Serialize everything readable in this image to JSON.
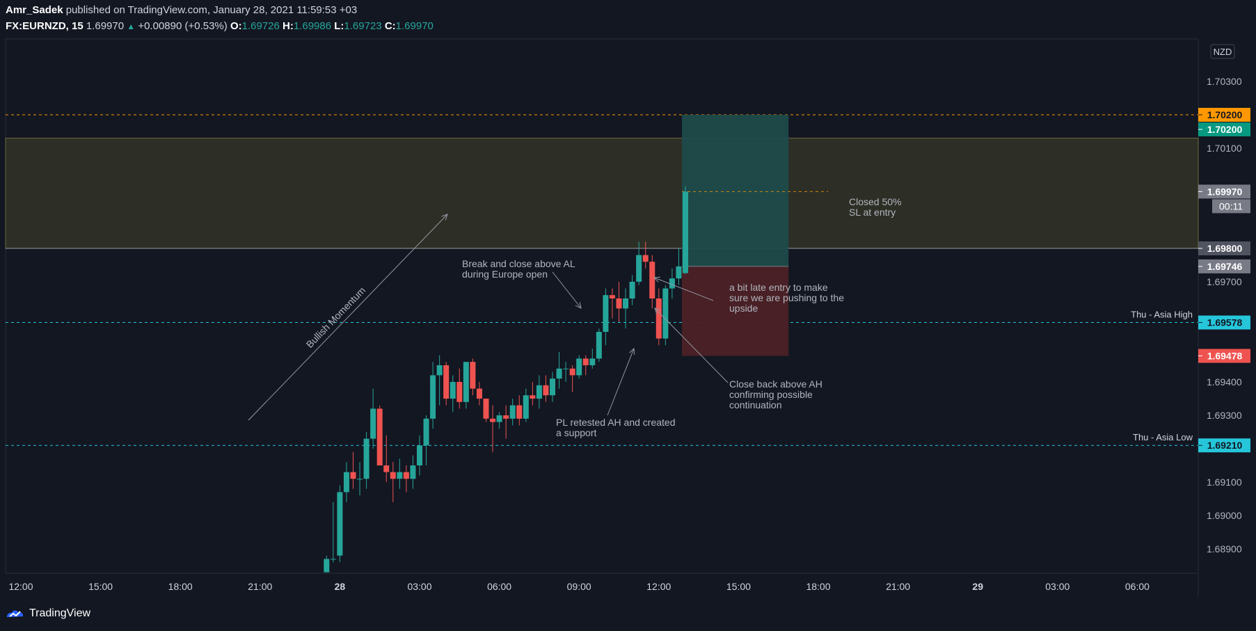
{
  "header": {
    "author": "Amr_Sadek",
    "published_text": "published on TradingView.com, January 28, 2021 11:59:53 +03",
    "symbol": "FX:EURNZD, 15",
    "last": "1.69970",
    "change": "+0.00890 (+0.53%)",
    "o_label": "O:",
    "o": "1.69726",
    "h_label": "H:",
    "h": "1.69986",
    "l_label": "L:",
    "l": "1.69723",
    "c_label": "C:",
    "c": "1.69970"
  },
  "footer": {
    "brand": "TradingView"
  },
  "colors": {
    "background": "#131722",
    "up": "#26a69a",
    "down": "#ef5350",
    "zone": "#2d2f26",
    "tp": "#1f4b4b",
    "sl": "#4b2126",
    "asia": "#26c6da",
    "target_line": "#ff9800"
  },
  "chart_data": {
    "type": "candlestick",
    "symbol": "FX:EURNZD",
    "interval": "15",
    "currency_badge": "NZD",
    "ylim": [
      1.6885,
      1.7046
    ],
    "y_ticks": [
      "1.70300",
      "1.70100",
      "1.69700",
      "1.69400",
      "1.69300",
      "1.69100",
      "1.69000",
      "1.68900"
    ],
    "x_ticks": [
      {
        "label": "12:00",
        "day": "27",
        "hour": 12,
        "bold": false
      },
      {
        "label": "15:00",
        "day": "27",
        "hour": 15,
        "bold": false
      },
      {
        "label": "18:00",
        "day": "27",
        "hour": 18,
        "bold": false
      },
      {
        "label": "21:00",
        "day": "27",
        "hour": 21,
        "bold": false
      },
      {
        "label": "28",
        "day": "28",
        "hour": 0,
        "bold": true
      },
      {
        "label": "03:00",
        "day": "28",
        "hour": 3,
        "bold": false
      },
      {
        "label": "06:00",
        "day": "28",
        "hour": 6,
        "bold": false
      },
      {
        "label": "09:00",
        "day": "28",
        "hour": 9,
        "bold": false
      },
      {
        "label": "12:00",
        "day": "28",
        "hour": 12,
        "bold": false
      },
      {
        "label": "15:00",
        "day": "28",
        "hour": 15,
        "bold": false
      },
      {
        "label": "18:00",
        "day": "28",
        "hour": 18,
        "bold": false
      },
      {
        "label": "21:00",
        "day": "28",
        "hour": 21,
        "bold": false
      },
      {
        "label": "29",
        "day": "29",
        "hour": 0,
        "bold": true
      },
      {
        "label": "03:00",
        "day": "29",
        "hour": 3,
        "bold": false
      },
      {
        "label": "06:00",
        "day": "29",
        "hour": 6,
        "bold": false
      }
    ],
    "candles": [
      {
        "t": "27 23:30",
        "o": 1.6883,
        "h": 1.6888,
        "l": 1.6883,
        "c": 1.6887
      },
      {
        "t": "27 23:45",
        "o": 1.6887,
        "h": 1.6904,
        "l": 1.6886,
        "c": 1.6887
      },
      {
        "t": "28 00:00",
        "o": 1.6888,
        "h": 1.6909,
        "l": 1.6886,
        "c": 1.6907
      },
      {
        "t": "28 00:15",
        "o": 1.6907,
        "h": 1.6916,
        "l": 1.6904,
        "c": 1.6913
      },
      {
        "t": "28 00:30",
        "o": 1.6913,
        "h": 1.6919,
        "l": 1.6908,
        "c": 1.6911
      },
      {
        "t": "28 00:45",
        "o": 1.6911,
        "h": 1.6916,
        "l": 1.6906,
        "c": 1.6911
      },
      {
        "t": "28 01:00",
        "o": 1.6911,
        "h": 1.6925,
        "l": 1.6908,
        "c": 1.6923
      },
      {
        "t": "28 01:15",
        "o": 1.6923,
        "h": 1.6938,
        "l": 1.692,
        "c": 1.6932
      },
      {
        "t": "28 01:30",
        "o": 1.6932,
        "h": 1.6933,
        "l": 1.6915,
        "c": 1.6915
      },
      {
        "t": "28 01:45",
        "o": 1.6915,
        "h": 1.6924,
        "l": 1.691,
        "c": 1.6913
      },
      {
        "t": "28 02:00",
        "o": 1.6913,
        "h": 1.6916,
        "l": 1.6904,
        "c": 1.6911
      },
      {
        "t": "28 02:15",
        "o": 1.6911,
        "h": 1.6917,
        "l": 1.6908,
        "c": 1.6913
      },
      {
        "t": "28 02:30",
        "o": 1.6913,
        "h": 1.6915,
        "l": 1.6907,
        "c": 1.6911
      },
      {
        "t": "28 02:45",
        "o": 1.6911,
        "h": 1.6918,
        "l": 1.6908,
        "c": 1.6915
      },
      {
        "t": "28 03:00",
        "o": 1.6915,
        "h": 1.6924,
        "l": 1.6912,
        "c": 1.6921
      },
      {
        "t": "28 03:15",
        "o": 1.6921,
        "h": 1.693,
        "l": 1.6915,
        "c": 1.6929
      },
      {
        "t": "28 03:30",
        "o": 1.6929,
        "h": 1.6946,
        "l": 1.6926,
        "c": 1.6942
      },
      {
        "t": "28 03:45",
        "o": 1.6942,
        "h": 1.6948,
        "l": 1.6933,
        "c": 1.6945
      },
      {
        "t": "28 04:00",
        "o": 1.6945,
        "h": 1.6946,
        "l": 1.6933,
        "c": 1.6935
      },
      {
        "t": "28 04:15",
        "o": 1.6935,
        "h": 1.6942,
        "l": 1.6931,
        "c": 1.694
      },
      {
        "t": "28 04:30",
        "o": 1.694,
        "h": 1.6944,
        "l": 1.6932,
        "c": 1.6934
      },
      {
        "t": "28 04:45",
        "o": 1.6934,
        "h": 1.6946,
        "l": 1.6932,
        "c": 1.6946
      },
      {
        "t": "28 05:00",
        "o": 1.6946,
        "h": 1.6947,
        "l": 1.6936,
        "c": 1.6938
      },
      {
        "t": "28 05:15",
        "o": 1.6938,
        "h": 1.694,
        "l": 1.6933,
        "c": 1.6935
      },
      {
        "t": "28 05:30",
        "o": 1.6935,
        "h": 1.6935,
        "l": 1.6928,
        "c": 1.6929
      },
      {
        "t": "28 05:45",
        "o": 1.6929,
        "h": 1.6933,
        "l": 1.6919,
        "c": 1.6928
      },
      {
        "t": "28 06:00",
        "o": 1.6928,
        "h": 1.6931,
        "l": 1.6926,
        "c": 1.693
      },
      {
        "t": "28 06:15",
        "o": 1.693,
        "h": 1.6933,
        "l": 1.6923,
        "c": 1.6929
      },
      {
        "t": "28 06:30",
        "o": 1.6929,
        "h": 1.6935,
        "l": 1.6927,
        "c": 1.6933
      },
      {
        "t": "28 06:45",
        "o": 1.6933,
        "h": 1.6936,
        "l": 1.6927,
        "c": 1.6929
      },
      {
        "t": "28 07:00",
        "o": 1.6929,
        "h": 1.6938,
        "l": 1.6928,
        "c": 1.6936
      },
      {
        "t": "28 07:15",
        "o": 1.6936,
        "h": 1.694,
        "l": 1.6933,
        "c": 1.6935
      },
      {
        "t": "28 07:30",
        "o": 1.6935,
        "h": 1.6942,
        "l": 1.6932,
        "c": 1.6939
      },
      {
        "t": "28 07:45",
        "o": 1.6939,
        "h": 1.6942,
        "l": 1.6934,
        "c": 1.6936
      },
      {
        "t": "28 08:00",
        "o": 1.6936,
        "h": 1.6943,
        "l": 1.6934,
        "c": 1.6941
      },
      {
        "t": "28 08:15",
        "o": 1.6941,
        "h": 1.6949,
        "l": 1.6938,
        "c": 1.6944
      },
      {
        "t": "28 08:30",
        "o": 1.6944,
        "h": 1.6946,
        "l": 1.694,
        "c": 1.6944
      },
      {
        "t": "28 08:45",
        "o": 1.6944,
        "h": 1.6945,
        "l": 1.6937,
        "c": 1.6942
      },
      {
        "t": "28 09:00",
        "o": 1.6942,
        "h": 1.6948,
        "l": 1.6941,
        "c": 1.6947
      },
      {
        "t": "28 09:15",
        "o": 1.6947,
        "h": 1.6948,
        "l": 1.6942,
        "c": 1.6945
      },
      {
        "t": "28 09:30",
        "o": 1.6945,
        "h": 1.695,
        "l": 1.6944,
        "c": 1.6947
      },
      {
        "t": "28 09:45",
        "o": 1.6947,
        "h": 1.6956,
        "l": 1.6946,
        "c": 1.6955
      },
      {
        "t": "28 10:00",
        "o": 1.6955,
        "h": 1.6968,
        "l": 1.6951,
        "c": 1.6966
      },
      {
        "t": "28 10:15",
        "o": 1.6966,
        "h": 1.6968,
        "l": 1.6959,
        "c": 1.6965
      },
      {
        "t": "28 10:30",
        "o": 1.6965,
        "h": 1.697,
        "l": 1.6958,
        "c": 1.6962
      },
      {
        "t": "28 10:45",
        "o": 1.6962,
        "h": 1.6968,
        "l": 1.6956,
        "c": 1.6965
      },
      {
        "t": "28 11:00",
        "o": 1.6965,
        "h": 1.6972,
        "l": 1.6963,
        "c": 1.697
      },
      {
        "t": "28 11:15",
        "o": 1.697,
        "h": 1.6982,
        "l": 1.6969,
        "c": 1.6978
      },
      {
        "t": "28 11:30",
        "o": 1.6978,
        "h": 1.6982,
        "l": 1.6974,
        "c": 1.6976
      },
      {
        "t": "28 11:45",
        "o": 1.6976,
        "h": 1.6978,
        "l": 1.6962,
        "c": 1.6965
      },
      {
        "t": "28 12:00",
        "o": 1.6965,
        "h": 1.6968,
        "l": 1.6951,
        "c": 1.6953
      },
      {
        "t": "28 12:15",
        "o": 1.6953,
        "h": 1.6969,
        "l": 1.6951,
        "c": 1.6968
      },
      {
        "t": "28 12:30",
        "o": 1.6968,
        "h": 1.6974,
        "l": 1.6965,
        "c": 1.6971
      },
      {
        "t": "28 12:45",
        "o": 1.6971,
        "h": 1.698,
        "l": 1.6969,
        "c": 1.69746
      },
      {
        "t": "28 13:00",
        "o": 1.69726,
        "h": 1.69986,
        "l": 1.69723,
        "c": 1.6997
      }
    ],
    "price_lines": [
      {
        "name": "target",
        "value": 1.702,
        "color": "#ff9800",
        "style": "dashed",
        "label": "1.70200",
        "label_bg": "#ff9800",
        "label_fg": "#131722"
      },
      {
        "name": "take-profit",
        "value": 1.702,
        "color": "#26a69a",
        "style": "none",
        "label": "1.70200",
        "label_bg": "#089981",
        "label_fg": "#ffffff"
      },
      {
        "name": "current-price",
        "value": 1.6997,
        "color": "#787b86",
        "style": "none",
        "label": "1.69970",
        "label_bg": "#787b86",
        "label_fg": "#ffffff",
        "countdown": "00:11"
      },
      {
        "name": "zone-bottom",
        "value": 1.698,
        "color": "#9e9e9e",
        "style": "solid",
        "label": "1.69800",
        "label_bg": "#505460",
        "label_fg": "#ffffff"
      },
      {
        "name": "entry",
        "value": 1.69746,
        "color": "#787b86",
        "style": "none",
        "label": "1.69746",
        "label_bg": "#787b86",
        "label_fg": "#ffffff"
      },
      {
        "name": "asia-high",
        "value": 1.69578,
        "color": "#26c6da",
        "style": "dashed",
        "label": "1.69578",
        "label_bg": "#26c6da",
        "label_fg": "#131722",
        "text": "Thu - Asia High"
      },
      {
        "name": "stop-loss",
        "value": 1.69478,
        "color": "#ef5350",
        "style": "none",
        "label": "1.69478",
        "label_bg": "#ef5350",
        "label_fg": "#ffffff"
      },
      {
        "name": "asia-low",
        "value": 1.6921,
        "color": "#26c6da",
        "style": "dashed",
        "label": "1.69210",
        "label_bg": "#26c6da",
        "label_fg": "#131722",
        "text": "Thu - Asia Low"
      }
    ],
    "zone": {
      "from": 1.698,
      "to": 1.7013
    },
    "position": {
      "type": "long",
      "entry": 1.69746,
      "target": 1.702,
      "stop": 1.69478,
      "start": "28 13:00",
      "end": "28 16:45"
    },
    "annotations": [
      {
        "name": "bullish-momentum",
        "text": "Bullish Momentum"
      },
      {
        "name": "break-close",
        "lines": [
          "Break and close above AL",
          "during Europe open"
        ]
      },
      {
        "name": "closed-50",
        "lines": [
          "Closed 50%",
          "SL at entry"
        ]
      },
      {
        "name": "late-entry",
        "lines": [
          "a bit late entry to make",
          "sure we are pushing to the",
          "upside"
        ]
      },
      {
        "name": "pl-retested",
        "lines": [
          "PL retested AH and created",
          "a support"
        ]
      },
      {
        "name": "close-back",
        "lines": [
          "Close back above AH",
          "confirming possible",
          "continuation"
        ]
      }
    ]
  }
}
